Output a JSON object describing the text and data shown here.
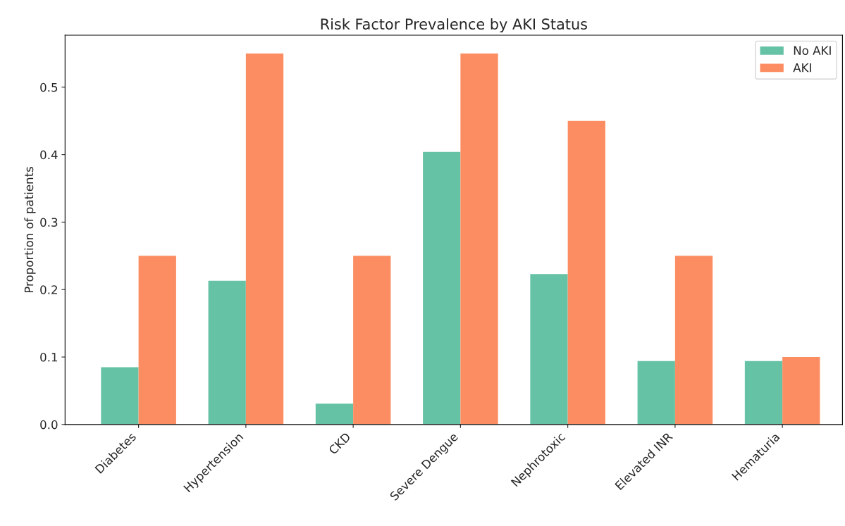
{
  "chart_data": {
    "type": "bar",
    "title": "Risk Factor Prevalence by AKI Status",
    "ylabel": "Proportion of patients",
    "categories": [
      "Diabetes",
      "Hypertension",
      "CKD",
      "Severe Dengue",
      "Nephrotoxic",
      "Elevated INR",
      "Hematuria"
    ],
    "series": [
      {
        "name": "No AKI",
        "color": "#66c2a5",
        "values": [
          0.085,
          0.213,
          0.031,
          0.404,
          0.223,
          0.094,
          0.094
        ]
      },
      {
        "name": "AKI",
        "color": "#fc8d62",
        "values": [
          0.25,
          0.55,
          0.25,
          0.55,
          0.45,
          0.25,
          0.1
        ]
      }
    ],
    "ylim": [
      0,
      0.577
    ],
    "yticks": [
      {
        "value": 0,
        "label": "0.0"
      },
      0.1,
      0.2,
      0.3,
      0.4,
      0.5
    ],
    "grid": false,
    "legend": "top right"
  }
}
